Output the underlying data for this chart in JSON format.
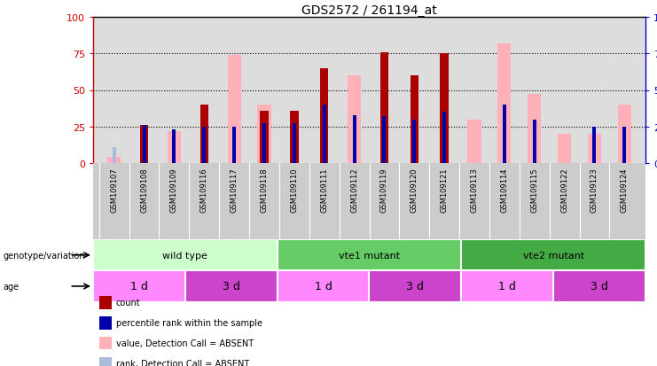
{
  "title": "GDS2572 / 261194_at",
  "samples": [
    "GSM109107",
    "GSM109108",
    "GSM109109",
    "GSM109116",
    "GSM109117",
    "GSM109118",
    "GSM109110",
    "GSM109111",
    "GSM109112",
    "GSM109119",
    "GSM109120",
    "GSM109121",
    "GSM109113",
    "GSM109114",
    "GSM109115",
    "GSM109122",
    "GSM109123",
    "GSM109124"
  ],
  "count": [
    0,
    26,
    0,
    40,
    0,
    36,
    36,
    65,
    0,
    76,
    60,
    75,
    0,
    0,
    0,
    0,
    0,
    0
  ],
  "percentile": [
    0,
    26,
    23,
    25,
    25,
    27,
    27,
    40,
    33,
    32,
    30,
    35,
    0,
    40,
    30,
    0,
    25,
    25
  ],
  "value_absent": [
    4,
    0,
    22,
    0,
    74,
    40,
    0,
    0,
    60,
    0,
    0,
    0,
    30,
    82,
    47,
    20,
    20,
    40
  ],
  "rank_absent": [
    11,
    0,
    0,
    0,
    0,
    0,
    0,
    0,
    0,
    0,
    0,
    0,
    0,
    0,
    0,
    0,
    0,
    0
  ],
  "genotype_groups": [
    {
      "label": "wild type",
      "start": 0,
      "end": 6,
      "color": "#CCFFCC"
    },
    {
      "label": "vte1 mutant",
      "start": 6,
      "end": 12,
      "color": "#66CC66"
    },
    {
      "label": "vte2 mutant",
      "start": 12,
      "end": 18,
      "color": "#44AA44"
    }
  ],
  "age_groups": [
    {
      "label": "1 d",
      "start": 0,
      "end": 3,
      "color": "#FF88FF"
    },
    {
      "label": "3 d",
      "start": 3,
      "end": 6,
      "color": "#CC44CC"
    },
    {
      "label": "1 d",
      "start": 6,
      "end": 9,
      "color": "#FF88FF"
    },
    {
      "label": "3 d",
      "start": 9,
      "end": 12,
      "color": "#CC44CC"
    },
    {
      "label": "1 d",
      "start": 12,
      "end": 15,
      "color": "#FF88FF"
    },
    {
      "label": "3 d",
      "start": 15,
      "end": 18,
      "color": "#CC44CC"
    }
  ],
  "count_color": "#AA0000",
  "percentile_color": "#0000AA",
  "value_absent_color": "#FFB0B8",
  "rank_absent_color": "#AABBDD",
  "left_axis_color": "#CC0000",
  "right_axis_color": "#0000CC",
  "ylim": [
    0,
    100
  ],
  "yticks": [
    0,
    25,
    50,
    75,
    100
  ]
}
